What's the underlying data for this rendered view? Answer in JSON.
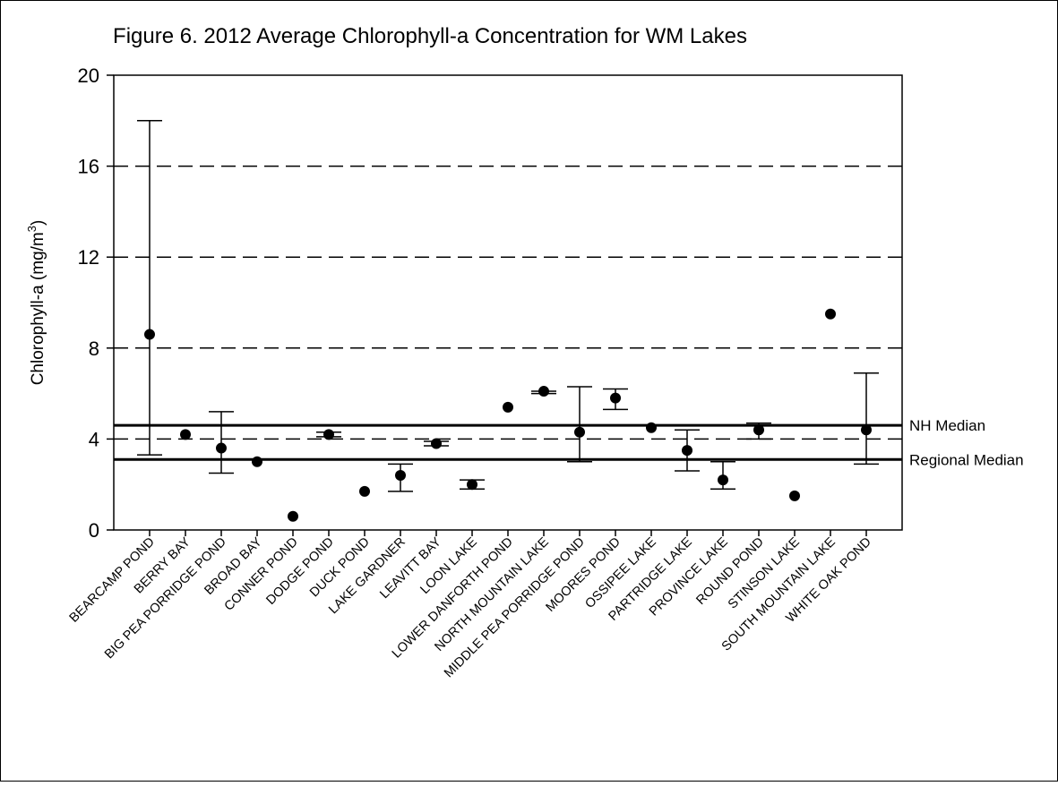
{
  "chart_data": {
    "type": "scatter",
    "title": "Figure 6. 2012 Average Chlorophyll-a Concentration for WM Lakes",
    "y_label_parts": [
      "Chlorophyll-a (mg/m",
      "3",
      ")"
    ],
    "categories": [
      "BEARCAMP POND",
      "BERRY BAY",
      "BIG PEA PORRIDGE POND",
      "BROAD BAY",
      "CONNER POND",
      "DODGE POND",
      "DUCK POND",
      "LAKE GARDNER",
      "LEAVITT BAY",
      "LOON LAKE",
      "LOWER DANFORTH POND",
      "NORTH MOUNTAIN LAKE",
      "MIDDLE PEA PORRIDGE POND",
      "MOORES POND",
      "OSSIPEE LAKE",
      "PARTRIDGE LAKE",
      "PROVINCE LAKE",
      "ROUND POND",
      "STINSON LAKE",
      "SOUTH MOUNTAIN LAKE",
      "WHITE OAK POND"
    ],
    "values": [
      8.6,
      4.2,
      3.6,
      3.0,
      0.6,
      4.2,
      1.7,
      2.4,
      3.8,
      2.0,
      5.4,
      6.1,
      4.3,
      5.8,
      4.5,
      3.5,
      2.2,
      4.4,
      1.5,
      9.5,
      4.4
    ],
    "low": [
      3.3,
      null,
      2.5,
      null,
      null,
      4.1,
      null,
      1.7,
      3.7,
      1.8,
      null,
      6.0,
      3.0,
      5.3,
      null,
      2.6,
      1.8,
      4.0,
      null,
      null,
      2.9
    ],
    "high": [
      18.0,
      null,
      5.2,
      null,
      null,
      4.3,
      null,
      2.9,
      3.9,
      2.2,
      null,
      6.1,
      6.3,
      6.2,
      null,
      4.4,
      3.0,
      4.7,
      null,
      null,
      6.9
    ],
    "color": "#000000",
    "ylim": [
      0,
      20
    ],
    "yticks": [
      0,
      4,
      8,
      12,
      16,
      20
    ],
    "grid": true,
    "reference_lines": [
      {
        "label": "NH Median",
        "value": 4.6
      },
      {
        "label": "Regional Median",
        "value": 3.1
      }
    ]
  }
}
